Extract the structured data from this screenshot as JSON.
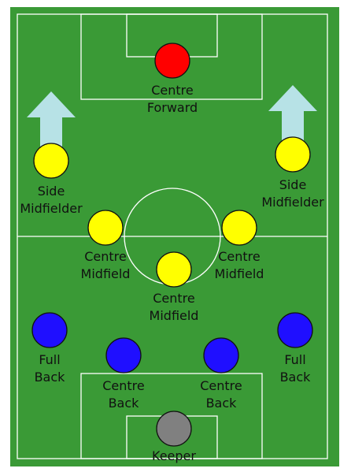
{
  "colors": {
    "pitch": "#3a9a36",
    "border": "#e6e6e6",
    "lines": "#ffffff",
    "attack": "#ff0000",
    "midfield": "#ffff00",
    "defence": "#1f0fff",
    "keeper": "#808080",
    "arrow": "#b7e2e6",
    "outline": "#111111"
  },
  "players": [
    {
      "id": "centre-forward",
      "role": "attack",
      "label": [
        "Centre",
        "Forward"
      ]
    },
    {
      "id": "side-midfielder-left",
      "role": "midfield",
      "label": [
        "Side",
        "Midfielder"
      ]
    },
    {
      "id": "side-midfielder-right",
      "role": "midfield",
      "label": [
        "Side",
        "Midfielder"
      ]
    },
    {
      "id": "centre-midfield-left",
      "role": "midfield",
      "label": [
        "Centre",
        "Midfield"
      ]
    },
    {
      "id": "centre-midfield-right",
      "role": "midfield",
      "label": [
        "Centre",
        "Midfield"
      ]
    },
    {
      "id": "centre-midfield-deep",
      "role": "midfield",
      "label": [
        "Centre",
        "Midfield"
      ]
    },
    {
      "id": "full-back-left",
      "role": "defence",
      "label": [
        "Full",
        "Back"
      ]
    },
    {
      "id": "full-back-right",
      "role": "defence",
      "label": [
        "Full",
        "Back"
      ]
    },
    {
      "id": "centre-back-left",
      "role": "defence",
      "label": [
        "Centre",
        "Back"
      ]
    },
    {
      "id": "centre-back-right",
      "role": "defence",
      "label": [
        "Centre",
        "Back"
      ]
    },
    {
      "id": "keeper",
      "role": "keeper",
      "label": [
        "Keeper"
      ]
    }
  ],
  "arrows": [
    "side-midfielder-left",
    "side-midfielder-right"
  ]
}
